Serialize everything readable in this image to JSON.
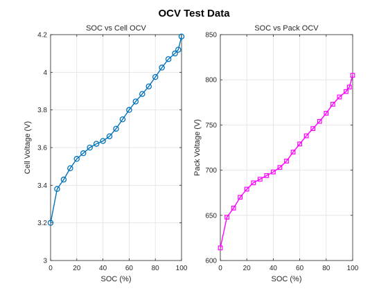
{
  "figure": {
    "title": "OCV Test Data"
  },
  "chart_data": [
    {
      "type": "line",
      "title": "SOC vs Cell OCV",
      "xlabel": "SOC (%)",
      "ylabel": "Cell Voltage (V)",
      "xlim": [
        0,
        100
      ],
      "ylim": [
        3,
        4.2
      ],
      "xticks": [
        0,
        20,
        40,
        60,
        80,
        100
      ],
      "xtick_labels": [
        "0",
        "20",
        "40",
        "60",
        "80",
        "100"
      ],
      "yticks": [
        3,
        3.2,
        3.4,
        3.6,
        3.8,
        4,
        4.2
      ],
      "ytick_labels": [
        "3",
        "3.2",
        "3.4",
        "3.6",
        "3.8",
        "4",
        "4.2"
      ],
      "grid": true,
      "series": [
        {
          "color": "#0072bd",
          "marker": "circle",
          "x": [
            0,
            5,
            10,
            15,
            20,
            25,
            30,
            35,
            40,
            45,
            50,
            55,
            60,
            65,
            70,
            75,
            80,
            85,
            90,
            95,
            97.5,
            100
          ],
          "y": [
            3.2,
            3.38,
            3.43,
            3.49,
            3.54,
            3.57,
            3.6,
            3.62,
            3.635,
            3.66,
            3.7,
            3.75,
            3.8,
            3.845,
            3.885,
            3.925,
            3.975,
            4.025,
            4.07,
            4.1,
            4.12,
            4.19
          ]
        }
      ]
    },
    {
      "type": "line",
      "title": "SOC vs Pack OCV",
      "xlabel": "SOC (%)",
      "ylabel": "Pack Voltage (V)",
      "xlim": [
        0,
        100
      ],
      "ylim": [
        600,
        850
      ],
      "xticks": [
        0,
        20,
        40,
        60,
        80,
        100
      ],
      "xtick_labels": [
        "0",
        "20",
        "40",
        "60",
        "80",
        "100"
      ],
      "yticks": [
        600,
        650,
        700,
        750,
        800,
        850
      ],
      "ytick_labels": [
        "600",
        "650",
        "700",
        "750",
        "800",
        "850"
      ],
      "grid": true,
      "series": [
        {
          "color": "#ff00ff",
          "marker": "square",
          "x": [
            0,
            5,
            10,
            15,
            20,
            25,
            30,
            35,
            40,
            45,
            50,
            55,
            60,
            65,
            70,
            75,
            80,
            85,
            90,
            95,
            97.5,
            100
          ],
          "y": [
            614,
            648,
            658,
            670,
            679,
            686,
            690,
            694,
            698,
            703,
            710,
            720,
            729,
            738,
            746,
            754,
            763,
            773,
            781,
            787,
            792,
            805
          ]
        }
      ]
    }
  ]
}
